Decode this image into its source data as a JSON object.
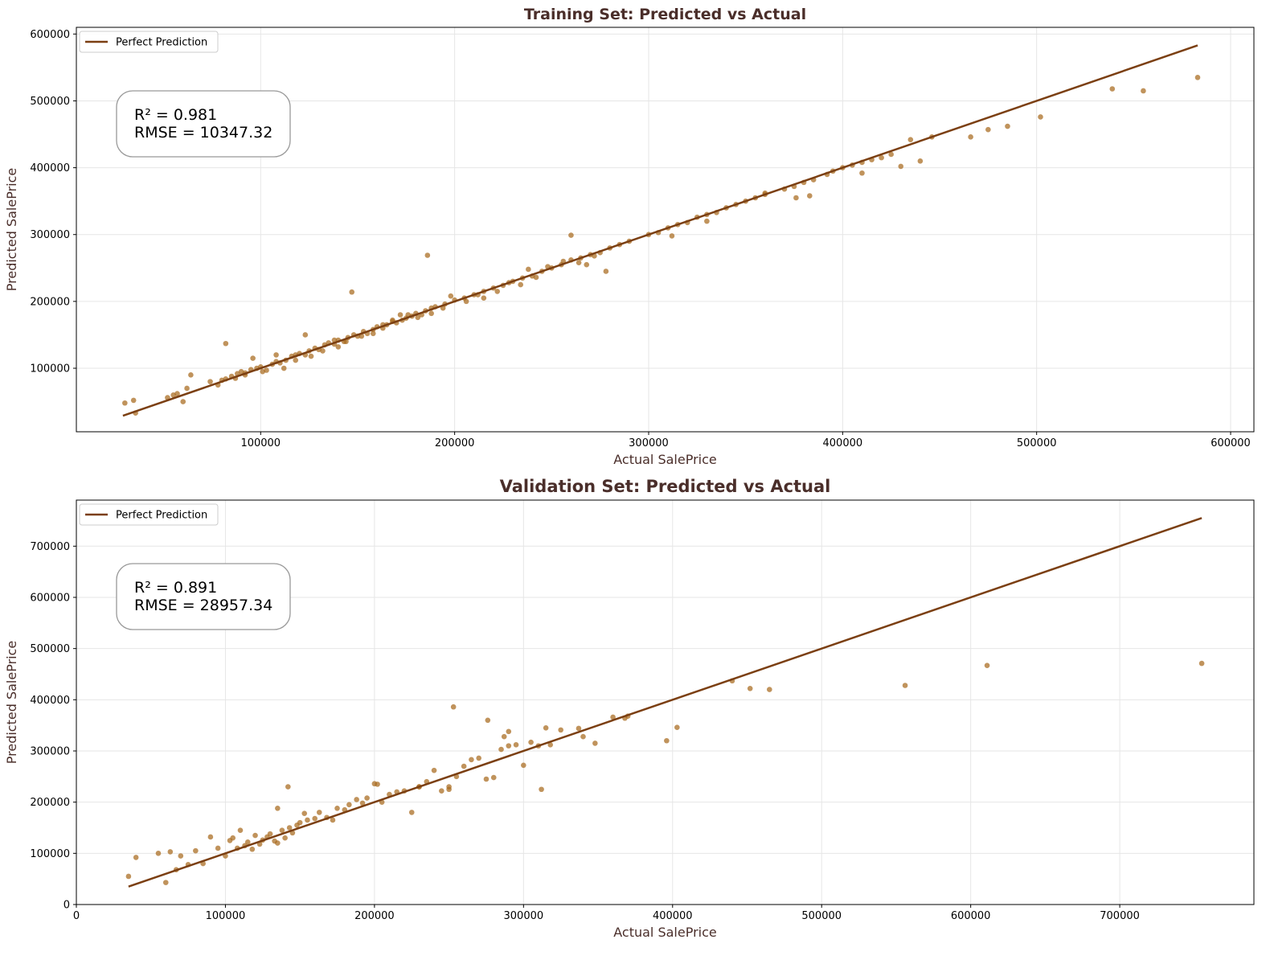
{
  "colors": {
    "line": "#7B3F12",
    "point": "#A8691D",
    "title": "#4A2E2A",
    "grid": "#e6e6e6",
    "axes": "#000000"
  },
  "chart_data": [
    {
      "type": "scatter",
      "title": "Training Set: Predicted vs Actual",
      "xlabel": "Actual SalePrice",
      "ylabel": "Predicted SalePrice",
      "xlim": [
        5000,
        612000
      ],
      "ylim": [
        5000,
        610000
      ],
      "xticks": [
        100000,
        200000,
        300000,
        400000,
        500000,
        600000
      ],
      "yticks": [
        100000,
        200000,
        300000,
        400000,
        500000,
        600000
      ],
      "grid": true,
      "legend": {
        "position": "top-left",
        "entries": [
          "Perfect Prediction"
        ]
      },
      "annotation": {
        "lines": [
          "R² = 0.981",
          "RMSE = 10347.32"
        ],
        "position": "upper-left"
      },
      "reference_line": {
        "name": "Perfect Prediction",
        "x": [
          29000,
          583000
        ],
        "y": [
          29000,
          583000
        ]
      },
      "series": [
        {
          "x": [
            30000,
            34500,
            35500,
            52000,
            55000,
            57000,
            60000,
            62000,
            64000,
            74000,
            78000,
            80000,
            82000,
            85000,
            88000,
            90000,
            92000,
            95000,
            98000,
            100000,
            103000,
            106000,
            108000,
            110000,
            113000,
            116000,
            118000,
            120000,
            123000,
            125000,
            128000,
            130000,
            133000,
            135000,
            138000,
            140000,
            143000,
            145000,
            148000,
            150000,
            153000,
            155000,
            158000,
            160000,
            163000,
            165000,
            168000,
            170000,
            173000,
            175000,
            178000,
            180000,
            183000,
            185000,
            188000,
            190000,
            195000,
            200000,
            205000,
            210000,
            215000,
            220000,
            225000,
            230000,
            235000,
            240000,
            245000,
            250000,
            255000,
            260000,
            265000,
            270000,
            275000,
            280000,
            285000,
            290000,
            300000,
            305000,
            310000,
            315000,
            320000,
            325000,
            330000,
            335000,
            340000,
            345000,
            350000,
            355000,
            360000,
            370000,
            375000,
            380000,
            385000,
            392000,
            395000,
            400000,
            405000,
            410000,
            415000,
            420000,
            425000,
            430000,
            435000,
            440000,
            446000,
            466000,
            475000,
            485000,
            502000,
            539000,
            555000,
            583000,
            82000,
            147000,
            186000,
            260000,
            278000,
            123000,
            108000,
            96000,
            140000,
            172000,
            215000,
            238000,
            268000,
            312000,
            330000,
            360000,
            376000,
            383000,
            410000,
            87000,
            92000,
            101000,
            112000,
            118000,
            126000,
            132000,
            138000,
            144000,
            152000,
            158000,
            163000,
            168000,
            176000,
            181000,
            188000,
            194000,
            198000,
            206000,
            212000,
            222000,
            228000,
            234000,
            242000,
            248000,
            256000,
            264000,
            272000
          ],
          "y": [
            48000,
            52000,
            33000,
            56000,
            60000,
            62000,
            50000,
            70000,
            90000,
            80000,
            75000,
            82000,
            84000,
            88000,
            92000,
            95000,
            93000,
            98000,
            100000,
            102000,
            97000,
            106000,
            110000,
            108000,
            112000,
            118000,
            120000,
            122000,
            120000,
            126000,
            130000,
            128000,
            135000,
            138000,
            136000,
            142000,
            140000,
            146000,
            150000,
            148000,
            155000,
            152000,
            158000,
            162000,
            160000,
            165000,
            170000,
            168000,
            172000,
            175000,
            178000,
            182000,
            180000,
            186000,
            190000,
            192000,
            196000,
            202000,
            205000,
            210000,
            215000,
            220000,
            224000,
            230000,
            235000,
            238000,
            245000,
            250000,
            255000,
            262000,
            265000,
            270000,
            273000,
            280000,
            285000,
            290000,
            300000,
            303000,
            310000,
            315000,
            318000,
            326000,
            330000,
            333000,
            340000,
            345000,
            350000,
            355000,
            360000,
            368000,
            372000,
            378000,
            382000,
            390000,
            395000,
            400000,
            404000,
            408000,
            412000,
            415000,
            420000,
            402000,
            442000,
            410000,
            446000,
            446000,
            457000,
            462000,
            476000,
            518000,
            515000,
            535000,
            137000,
            214000,
            269000,
            299000,
            245000,
            150000,
            120000,
            115000,
            132000,
            180000,
            205000,
            248000,
            255000,
            298000,
            320000,
            362000,
            355000,
            358000,
            392000,
            85000,
            90000,
            95000,
            100000,
            112000,
            118000,
            126000,
            142000,
            140000,
            148000,
            152000,
            165000,
            172000,
            180000,
            176000,
            182000,
            190000,
            208000,
            200000,
            210000,
            215000,
            228000,
            225000,
            236000,
            252000,
            260000,
            258000,
            268000
          ]
        }
      ]
    },
    {
      "type": "scatter",
      "title": "Validation Set: Predicted vs Actual",
      "xlabel": "Actual SalePrice",
      "ylabel": "Predicted SalePrice",
      "xlim": [
        0,
        790000
      ],
      "ylim": [
        0,
        790000
      ],
      "xticks": [
        0,
        100000,
        200000,
        300000,
        400000,
        500000,
        600000,
        700000
      ],
      "yticks": [
        0,
        100000,
        200000,
        300000,
        400000,
        500000,
        600000,
        700000
      ],
      "grid": true,
      "legend": {
        "position": "top-left",
        "entries": [
          "Perfect Prediction"
        ]
      },
      "annotation": {
        "lines": [
          "R² = 0.891",
          "RMSE = 28957.34"
        ],
        "position": "upper-left"
      },
      "reference_line": {
        "name": "Perfect Prediction",
        "x": [
          35000,
          755000
        ],
        "y": [
          35000,
          755000
        ]
      },
      "series": [
        {
          "x": [
            35000,
            40000,
            55000,
            60000,
            63000,
            67000,
            70000,
            75000,
            80000,
            85000,
            90000,
            95000,
            100000,
            103000,
            105000,
            108000,
            110000,
            113000,
            115000,
            118000,
            120000,
            123000,
            125000,
            128000,
            130000,
            133000,
            135000,
            138000,
            140000,
            143000,
            145000,
            148000,
            150000,
            153000,
            155000,
            160000,
            163000,
            168000,
            172000,
            175000,
            180000,
            183000,
            188000,
            192000,
            195000,
            200000,
            205000,
            210000,
            215000,
            220000,
            225000,
            230000,
            235000,
            240000,
            245000,
            250000,
            253000,
            255000,
            260000,
            265000,
            270000,
            275000,
            280000,
            285000,
            287000,
            290000,
            295000,
            300000,
            305000,
            310000,
            312000,
            315000,
            318000,
            325000,
            337000,
            340000,
            348000,
            360000,
            368000,
            370000,
            396000,
            403000,
            440000,
            452000,
            465000,
            556000,
            611000,
            755000,
            135000,
            142000,
            250000,
            276000,
            290000,
            202000,
            230000
          ],
          "y": [
            55000,
            92000,
            100000,
            43000,
            103000,
            68000,
            95000,
            78000,
            105000,
            80000,
            132000,
            110000,
            95000,
            125000,
            130000,
            110000,
            145000,
            115000,
            122000,
            108000,
            135000,
            118000,
            126000,
            132000,
            138000,
            124000,
            120000,
            145000,
            130000,
            150000,
            140000,
            155000,
            160000,
            178000,
            165000,
            168000,
            180000,
            170000,
            165000,
            188000,
            185000,
            195000,
            205000,
            198000,
            208000,
            236000,
            200000,
            215000,
            220000,
            222000,
            180000,
            230000,
            240000,
            262000,
            222000,
            230000,
            386000,
            250000,
            270000,
            283000,
            286000,
            245000,
            248000,
            303000,
            328000,
            310000,
            312000,
            272000,
            317000,
            310000,
            225000,
            345000,
            312000,
            341000,
            344000,
            328000,
            315000,
            366000,
            364000,
            368000,
            320000,
            346000,
            437000,
            422000,
            420000,
            428000,
            467000,
            471000,
            188000,
            230000,
            225000,
            360000,
            338000,
            235000,
            230000
          ]
        }
      ]
    }
  ]
}
